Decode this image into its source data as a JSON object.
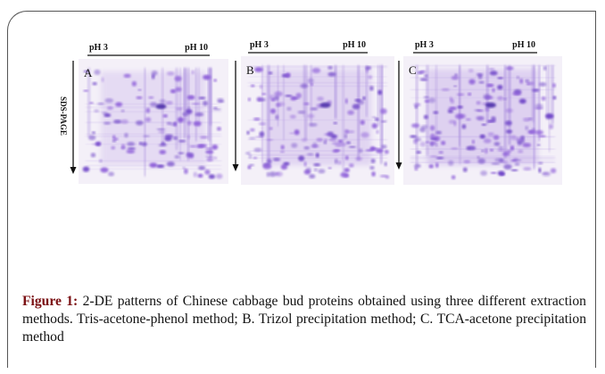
{
  "figure": {
    "panels": [
      {
        "label": "A",
        "ph_low": "pH 3",
        "ph_high": "pH 10"
      },
      {
        "label": "B",
        "ph_low": "pH 3",
        "ph_high": "pH 10"
      },
      {
        "label": "C",
        "ph_low": "pH 3",
        "ph_high": "pH 10"
      }
    ],
    "axis_label": "SDS-PAGE",
    "caption": {
      "label": "Figure 1:",
      "text": "2-DE patterns of Chinese cabbage bud proteins obtained using three different extraction methods. Tris-acetone-phenol method; B. Trizol precipitation method; C. TCA-acetone precipitation method"
    }
  }
}
